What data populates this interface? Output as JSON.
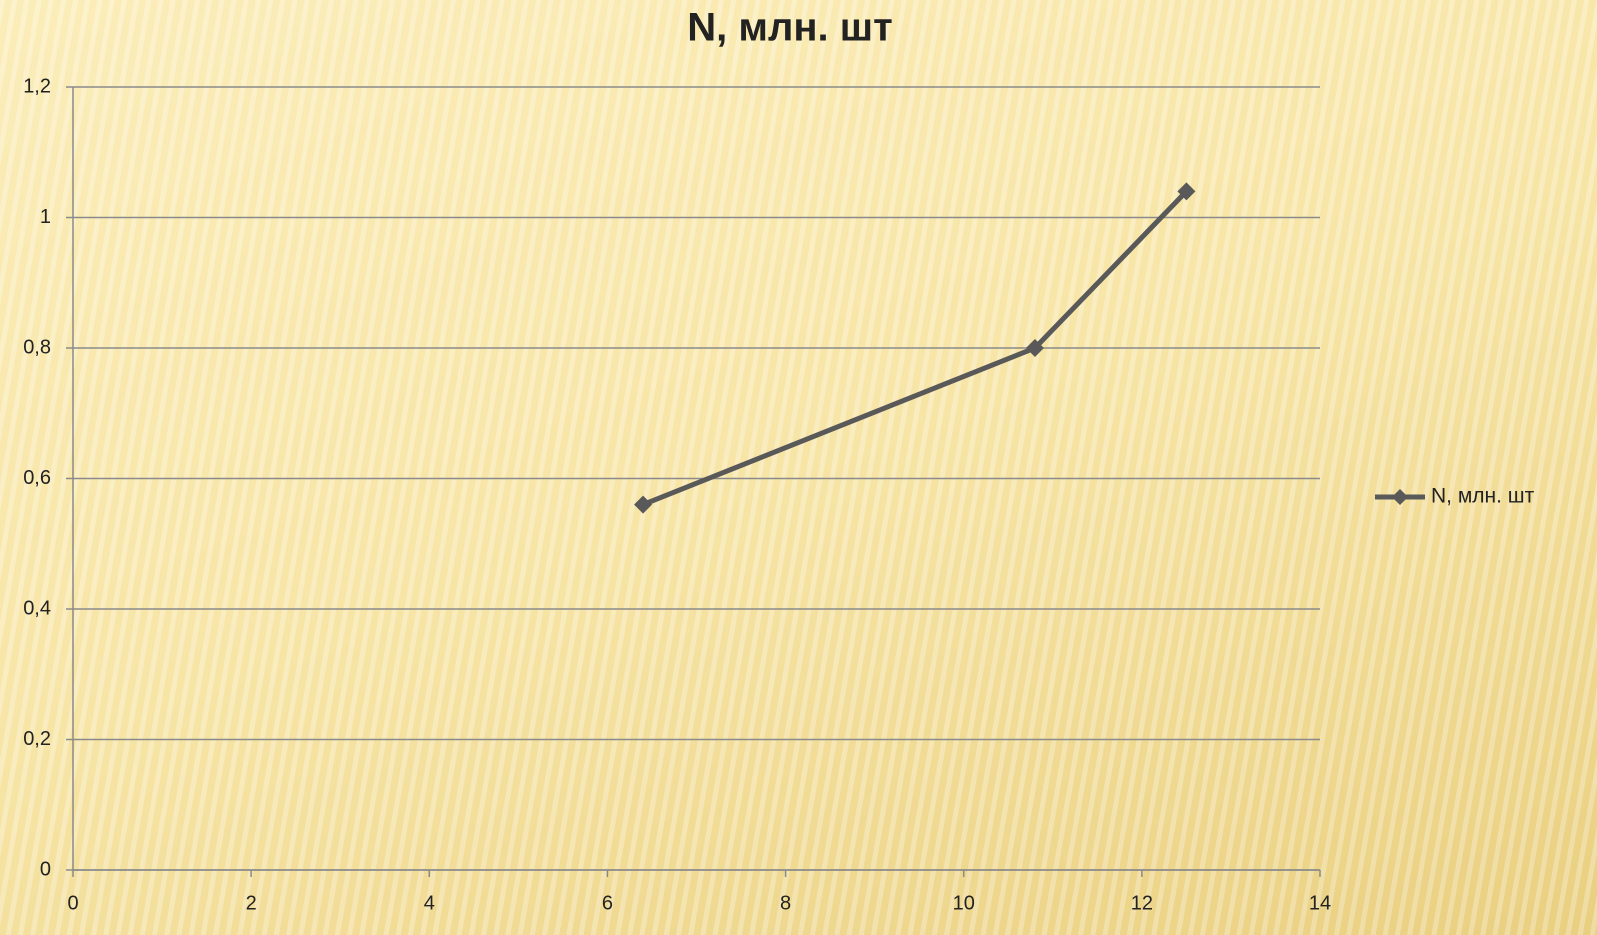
{
  "chart_data": {
    "type": "line",
    "title": "N, млн. шт",
    "series": [
      {
        "name": "N, млн. шт",
        "color": "#595959",
        "x": [
          6.4,
          10.8,
          12.5
        ],
        "values": [
          0.56,
          0.8,
          1.04
        ]
      }
    ],
    "xlim": [
      0,
      14
    ],
    "xticks": [
      0,
      2,
      4,
      6,
      8,
      10,
      12,
      14
    ],
    "ylim": [
      0,
      1.2
    ],
    "yticks": [
      0,
      {
        "value": 0.2,
        "label": "0,2"
      },
      {
        "value": 0.4,
        "label": "0,4"
      },
      {
        "value": 0.6,
        "label": "0,6"
      },
      {
        "value": 0.8,
        "label": "0,8"
      },
      1,
      {
        "value": 1.2,
        "label": "1,2"
      }
    ],
    "grid": true,
    "legend": "right"
  }
}
